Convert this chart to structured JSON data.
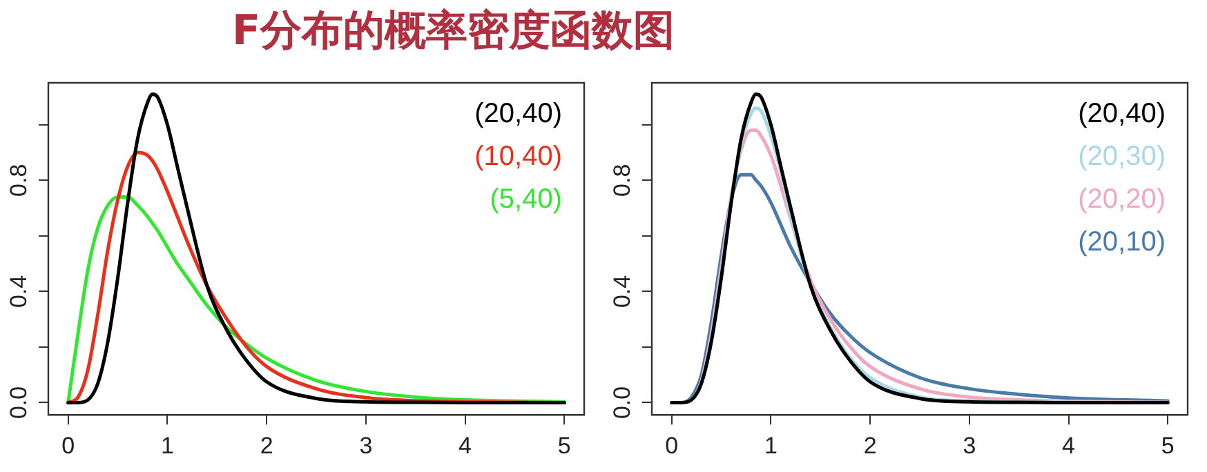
{
  "chart_data": [
    {
      "type": "line",
      "title": "F分布的概率密度函数图",
      "xlim": [
        -0.2,
        5.2
      ],
      "ylim": [
        -0.044,
        1.151
      ],
      "xticks": [
        0,
        1,
        2,
        3,
        4,
        5
      ],
      "yticks": [
        {
          "value": 0,
          "label": "0.0"
        },
        {
          "value": 0.2,
          "label": null
        },
        {
          "value": 0.4,
          "label": "0.4"
        },
        {
          "value": 0.6,
          "label": null
        },
        {
          "value": 0.8,
          "label": "0.8"
        },
        {
          "value": 1.0,
          "label": null
        }
      ],
      "grid": false,
      "legend": "top right",
      "marker": "none",
      "line_style": "solid",
      "x": [
        0,
        0.1,
        0.2,
        0.3,
        0.4,
        0.5,
        0.6,
        0.7,
        0.8,
        0.85,
        0.9,
        1.0,
        1.1,
        1.2,
        1.4,
        1.6,
        1.8,
        2.0,
        2.5,
        3,
        3.5,
        4,
        5
      ],
      "series": [
        {
          "name": "(20,40)",
          "color": "#000000",
          "values": [
            0,
            0,
            0.01,
            0.07,
            0.22,
            0.45,
            0.72,
            0.95,
            1.08,
            1.11,
            1.1,
            1.0,
            0.85,
            0.7,
            0.42,
            0.26,
            0.15,
            0.075,
            0.015,
            0.003,
            0.001,
            0,
            0
          ]
        },
        {
          "name": "(10,40)",
          "color": "#e8301c",
          "values": [
            0,
            0.02,
            0.12,
            0.32,
            0.55,
            0.73,
            0.85,
            0.9,
            0.89,
            0.87,
            0.84,
            0.76,
            0.67,
            0.58,
            0.42,
            0.3,
            0.2,
            0.13,
            0.05,
            0.018,
            0.007,
            0.003,
            0
          ]
        },
        {
          "name": "(5,40)",
          "color": "#33e633",
          "values": [
            0,
            0.25,
            0.48,
            0.63,
            0.71,
            0.74,
            0.74,
            0.71,
            0.67,
            0.645,
            0.62,
            0.56,
            0.5,
            0.45,
            0.35,
            0.27,
            0.21,
            0.16,
            0.08,
            0.04,
            0.02,
            0.01,
            0.003
          ]
        }
      ]
    },
    {
      "type": "line",
      "xlim": [
        -0.2,
        5.2
      ],
      "ylim": [
        -0.044,
        1.151
      ],
      "xticks": [
        0,
        1,
        2,
        3,
        4,
        5
      ],
      "yticks": [
        {
          "value": 0,
          "label": "0.0"
        },
        {
          "value": 0.2,
          "label": null
        },
        {
          "value": 0.4,
          "label": "0.4"
        },
        {
          "value": 0.6,
          "label": null
        },
        {
          "value": 0.8,
          "label": "0.8"
        },
        {
          "value": 1.0,
          "label": null
        }
      ],
      "grid": false,
      "legend": "top right",
      "marker": "none",
      "line_style": "solid",
      "x": [
        0,
        0.1,
        0.2,
        0.3,
        0.4,
        0.5,
        0.6,
        0.7,
        0.8,
        0.85,
        0.9,
        1.0,
        1.1,
        1.2,
        1.4,
        1.6,
        1.8,
        2.0,
        2.5,
        3,
        3.5,
        4,
        5
      ],
      "series": [
        {
          "name": "(20,40)",
          "color": "#000000",
          "values": [
            0,
            0,
            0.01,
            0.07,
            0.22,
            0.45,
            0.72,
            0.95,
            1.08,
            1.11,
            1.1,
            1.0,
            0.85,
            0.7,
            0.42,
            0.26,
            0.15,
            0.075,
            0.015,
            0.003,
            0.001,
            0,
            0
          ]
        },
        {
          "name": "(20,30)",
          "color": "#a8d8e8",
          "values": [
            0,
            0,
            0.01,
            0.07,
            0.23,
            0.46,
            0.72,
            0.93,
            1.04,
            1.06,
            1.05,
            0.96,
            0.83,
            0.67,
            0.42,
            0.27,
            0.16,
            0.09,
            0.02,
            0.006,
            0.002,
            0.001,
            0
          ]
        },
        {
          "name": "(20,20)",
          "color": "#f0a8c0",
          "values": [
            0,
            0,
            0.01,
            0.08,
            0.25,
            0.49,
            0.74,
            0.91,
            0.98,
            0.98,
            0.96,
            0.89,
            0.78,
            0.66,
            0.44,
            0.3,
            0.2,
            0.13,
            0.05,
            0.02,
            0.01,
            0.005,
            0.001
          ]
        },
        {
          "name": "(20,10)",
          "color": "#4a7aa8",
          "values": [
            0,
            0,
            0.02,
            0.1,
            0.29,
            0.53,
            0.73,
            0.82,
            0.82,
            0.8,
            0.78,
            0.72,
            0.64,
            0.56,
            0.43,
            0.32,
            0.24,
            0.18,
            0.09,
            0.05,
            0.03,
            0.017,
            0.006
          ]
        }
      ]
    }
  ]
}
